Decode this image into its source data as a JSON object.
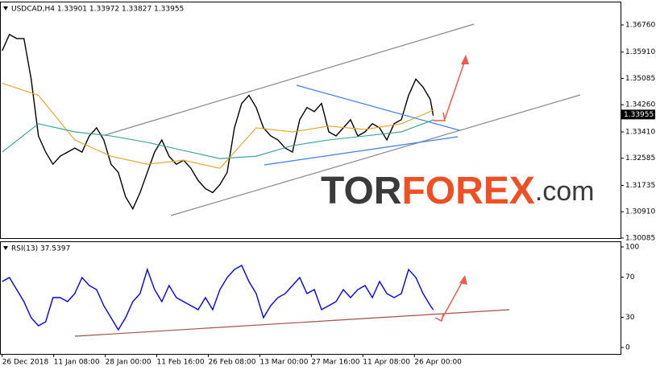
{
  "chart_data": [
    {
      "type": "line",
      "title": "USDCAD,H4 1.33901 1.33972 1.33827 1.33955",
      "xlim": [
        -3,
        852
      ],
      "ylim": [
        1.30085,
        1.3749
      ],
      "yticks": [
        {
          "value": 1.3676,
          "label": "1.36760"
        },
        {
          "value": 1.3591,
          "label": "1.35910"
        },
        1.35085,
        {
          "value": 1.3426,
          "label": "1.34260"
        },
        {
          "value": 1.3341,
          "label": "1.33410"
        },
        1.32585,
        1.31735,
        {
          "value": 1.3091,
          "label": "1.30910"
        },
        1.30085
      ],
      "price_tag": 1.33955,
      "series": [
        {
          "color": "#000000",
          "x": [
            0,
            10,
            20,
            30,
            40,
            50,
            60,
            70,
            80,
            90,
            100,
            110,
            120,
            130,
            140,
            150,
            160,
            170,
            180,
            190,
            200,
            210,
            220,
            230,
            240,
            250,
            260,
            270,
            280,
            290,
            300,
            310,
            320,
            330,
            340,
            350,
            360,
            370,
            380,
            390,
            400,
            410,
            420,
            430,
            440,
            450,
            460,
            470,
            480,
            490,
            500,
            510,
            520,
            530,
            540,
            550,
            560,
            570,
            580,
            590,
            594
          ],
          "values": [
            1.35952,
            1.3646,
            1.36333,
            1.36333,
            1.35063,
            1.33285,
            1.32777,
            1.32396,
            1.3265,
            1.32777,
            1.32904,
            1.32777,
            1.33285,
            1.33539,
            1.33158,
            1.32396,
            1.32142,
            1.3138,
            1.30999,
            1.31507,
            1.32142,
            1.32777,
            1.33158,
            1.3265,
            1.32396,
            1.32523,
            1.32269,
            1.31888,
            1.31634,
            1.31507,
            1.31761,
            1.32142,
            1.33539,
            1.34301,
            1.34555,
            1.34174,
            1.33539,
            1.33285,
            1.33158,
            1.32904,
            1.32777,
            1.33793,
            1.34174,
            1.34047,
            1.34301,
            1.33412,
            1.33285,
            1.33539,
            1.33793,
            1.33285,
            1.33412,
            1.33666,
            1.33539,
            1.33158,
            1.33666,
            1.33793,
            1.34555,
            1.35063,
            1.34809,
            1.34428,
            1.3392
          ]
        },
        {
          "color": "#e8a020",
          "x": [
            0,
            50,
            100,
            150,
            200,
            250,
            300,
            350,
            400,
            450,
            500,
            550,
            595
          ],
          "values": [
            1.34936,
            1.34555,
            1.33158,
            1.3265,
            1.32396,
            1.32523,
            1.32269,
            1.33539,
            1.33412,
            1.3359,
            1.33489,
            1.33666,
            1.34098
          ]
        },
        {
          "color": "#2f9e94",
          "x": [
            0,
            50,
            100,
            150,
            200,
            250,
            300,
            350,
            400,
            450,
            500,
            550,
            595
          ],
          "values": [
            1.32777,
            1.33666,
            1.33412,
            1.33285,
            1.33082,
            1.32828,
            1.32574,
            1.3265,
            1.32981,
            1.33158,
            1.33285,
            1.33412,
            1.33793
          ]
        }
      ],
      "logo": {
        "tor": "TOR",
        "forex": "FOREX",
        "com": ".com"
      }
    },
    {
      "type": "line",
      "title": "RSI(13) 37.5397",
      "xlim": [
        -3,
        852
      ],
      "ylim": [
        -6.4,
        105.6
      ],
      "yticks": [
        100,
        70,
        30,
        0
      ],
      "xticks": [
        {
          "value": 0,
          "label": "26 Dec 2018"
        },
        {
          "value": 71,
          "label": "11 Jan 08:00"
        },
        {
          "value": 142,
          "label": "28 Jan 00:00"
        },
        {
          "value": 213,
          "label": "11 Feb 16:00"
        },
        {
          "value": 284,
          "label": "26 Feb 08:00"
        },
        {
          "value": 355,
          "label": "13 Mar 00:00"
        },
        {
          "value": 426,
          "label": "27 Mar 16:00"
        },
        {
          "value": 497,
          "label": "11 Apr 08:00"
        },
        {
          "value": 568,
          "label": "26 Apr 00:00"
        }
      ],
      "series": [
        {
          "color": "#0000ff",
          "x": [
            0,
            10,
            20,
            30,
            40,
            50,
            60,
            70,
            80,
            90,
            100,
            110,
            120,
            130,
            140,
            150,
            160,
            170,
            180,
            190,
            200,
            210,
            220,
            230,
            240,
            250,
            260,
            270,
            280,
            290,
            300,
            310,
            320,
            330,
            340,
            350,
            360,
            370,
            380,
            390,
            400,
            410,
            420,
            430,
            440,
            450,
            460,
            470,
            480,
            490,
            500,
            510,
            520,
            530,
            540,
            550,
            560,
            570,
            580,
            590,
            594
          ],
          "values": [
            65.6,
            69.6,
            57.6,
            45.6,
            29.6,
            21.6,
            25.6,
            49.6,
            49.6,
            45.6,
            53.6,
            69.6,
            61.6,
            57.6,
            41.6,
            29.6,
            17.6,
            29.6,
            45.6,
            53.6,
            77.6,
            57.6,
            45.6,
            61.6,
            49.6,
            45.6,
            41.6,
            37.6,
            49.6,
            37.6,
            57.6,
            69.6,
            77.6,
            81.6,
            65.6,
            53.6,
            29.6,
            41.6,
            49.6,
            53.6,
            61.6,
            69.6,
            53.6,
            57.6,
            37.6,
            41.6,
            45.6,
            57.6,
            49.6,
            57.6,
            61.6,
            49.6,
            65.6,
            53.6,
            49.6,
            53.6,
            77.6,
            69.6,
            53.6,
            41.6,
            37.5397
          ]
        }
      ]
    }
  ]
}
